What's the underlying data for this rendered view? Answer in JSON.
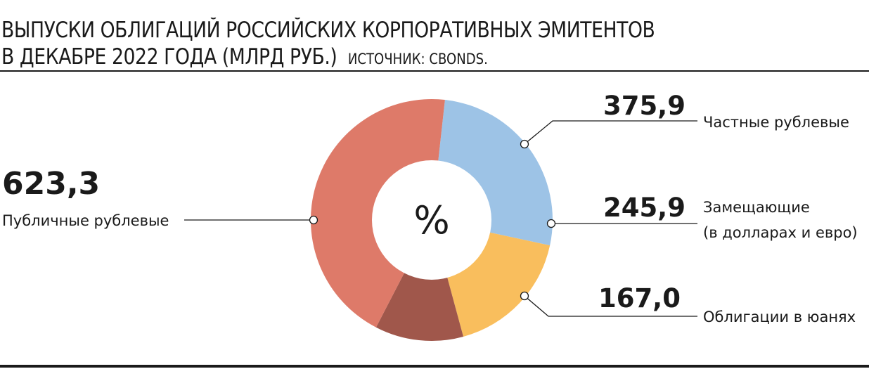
{
  "header": {
    "title_line1": "ВЫПУСКИ ОБЛИГАЦИЙ РОССИЙСКИХ КОРПОРАТИВНЫХ ЭМИТЕНТОВ",
    "title_line2": "В ДЕКАБРЕ 2022 ГОДА (МЛРД РУБ.)",
    "source": "ИСТОЧНИК: CBONDS."
  },
  "chart_data": {
    "type": "pie",
    "variant": "donut",
    "center_label": "%",
    "start": "top",
    "direction": "clockwise",
    "slices": [
      {
        "name": "Частные рублевые",
        "value": 375.9,
        "value_label": "375,9",
        "color": "#9dc3e6"
      },
      {
        "name": "Замещающие (в долларах и евро)",
        "name_lines": [
          "Замещающие",
          "(в долларах и евро)"
        ],
        "value": 245.9,
        "value_label": "245,9",
        "color": "#f9be5d"
      },
      {
        "name": "Облигации в юанях",
        "value": 167.0,
        "value_label": "167,0",
        "color": "#a0574b"
      },
      {
        "name": "Публичные рублевые",
        "value": 623.3,
        "value_label": "623,3",
        "color": "#de7a69"
      }
    ]
  }
}
